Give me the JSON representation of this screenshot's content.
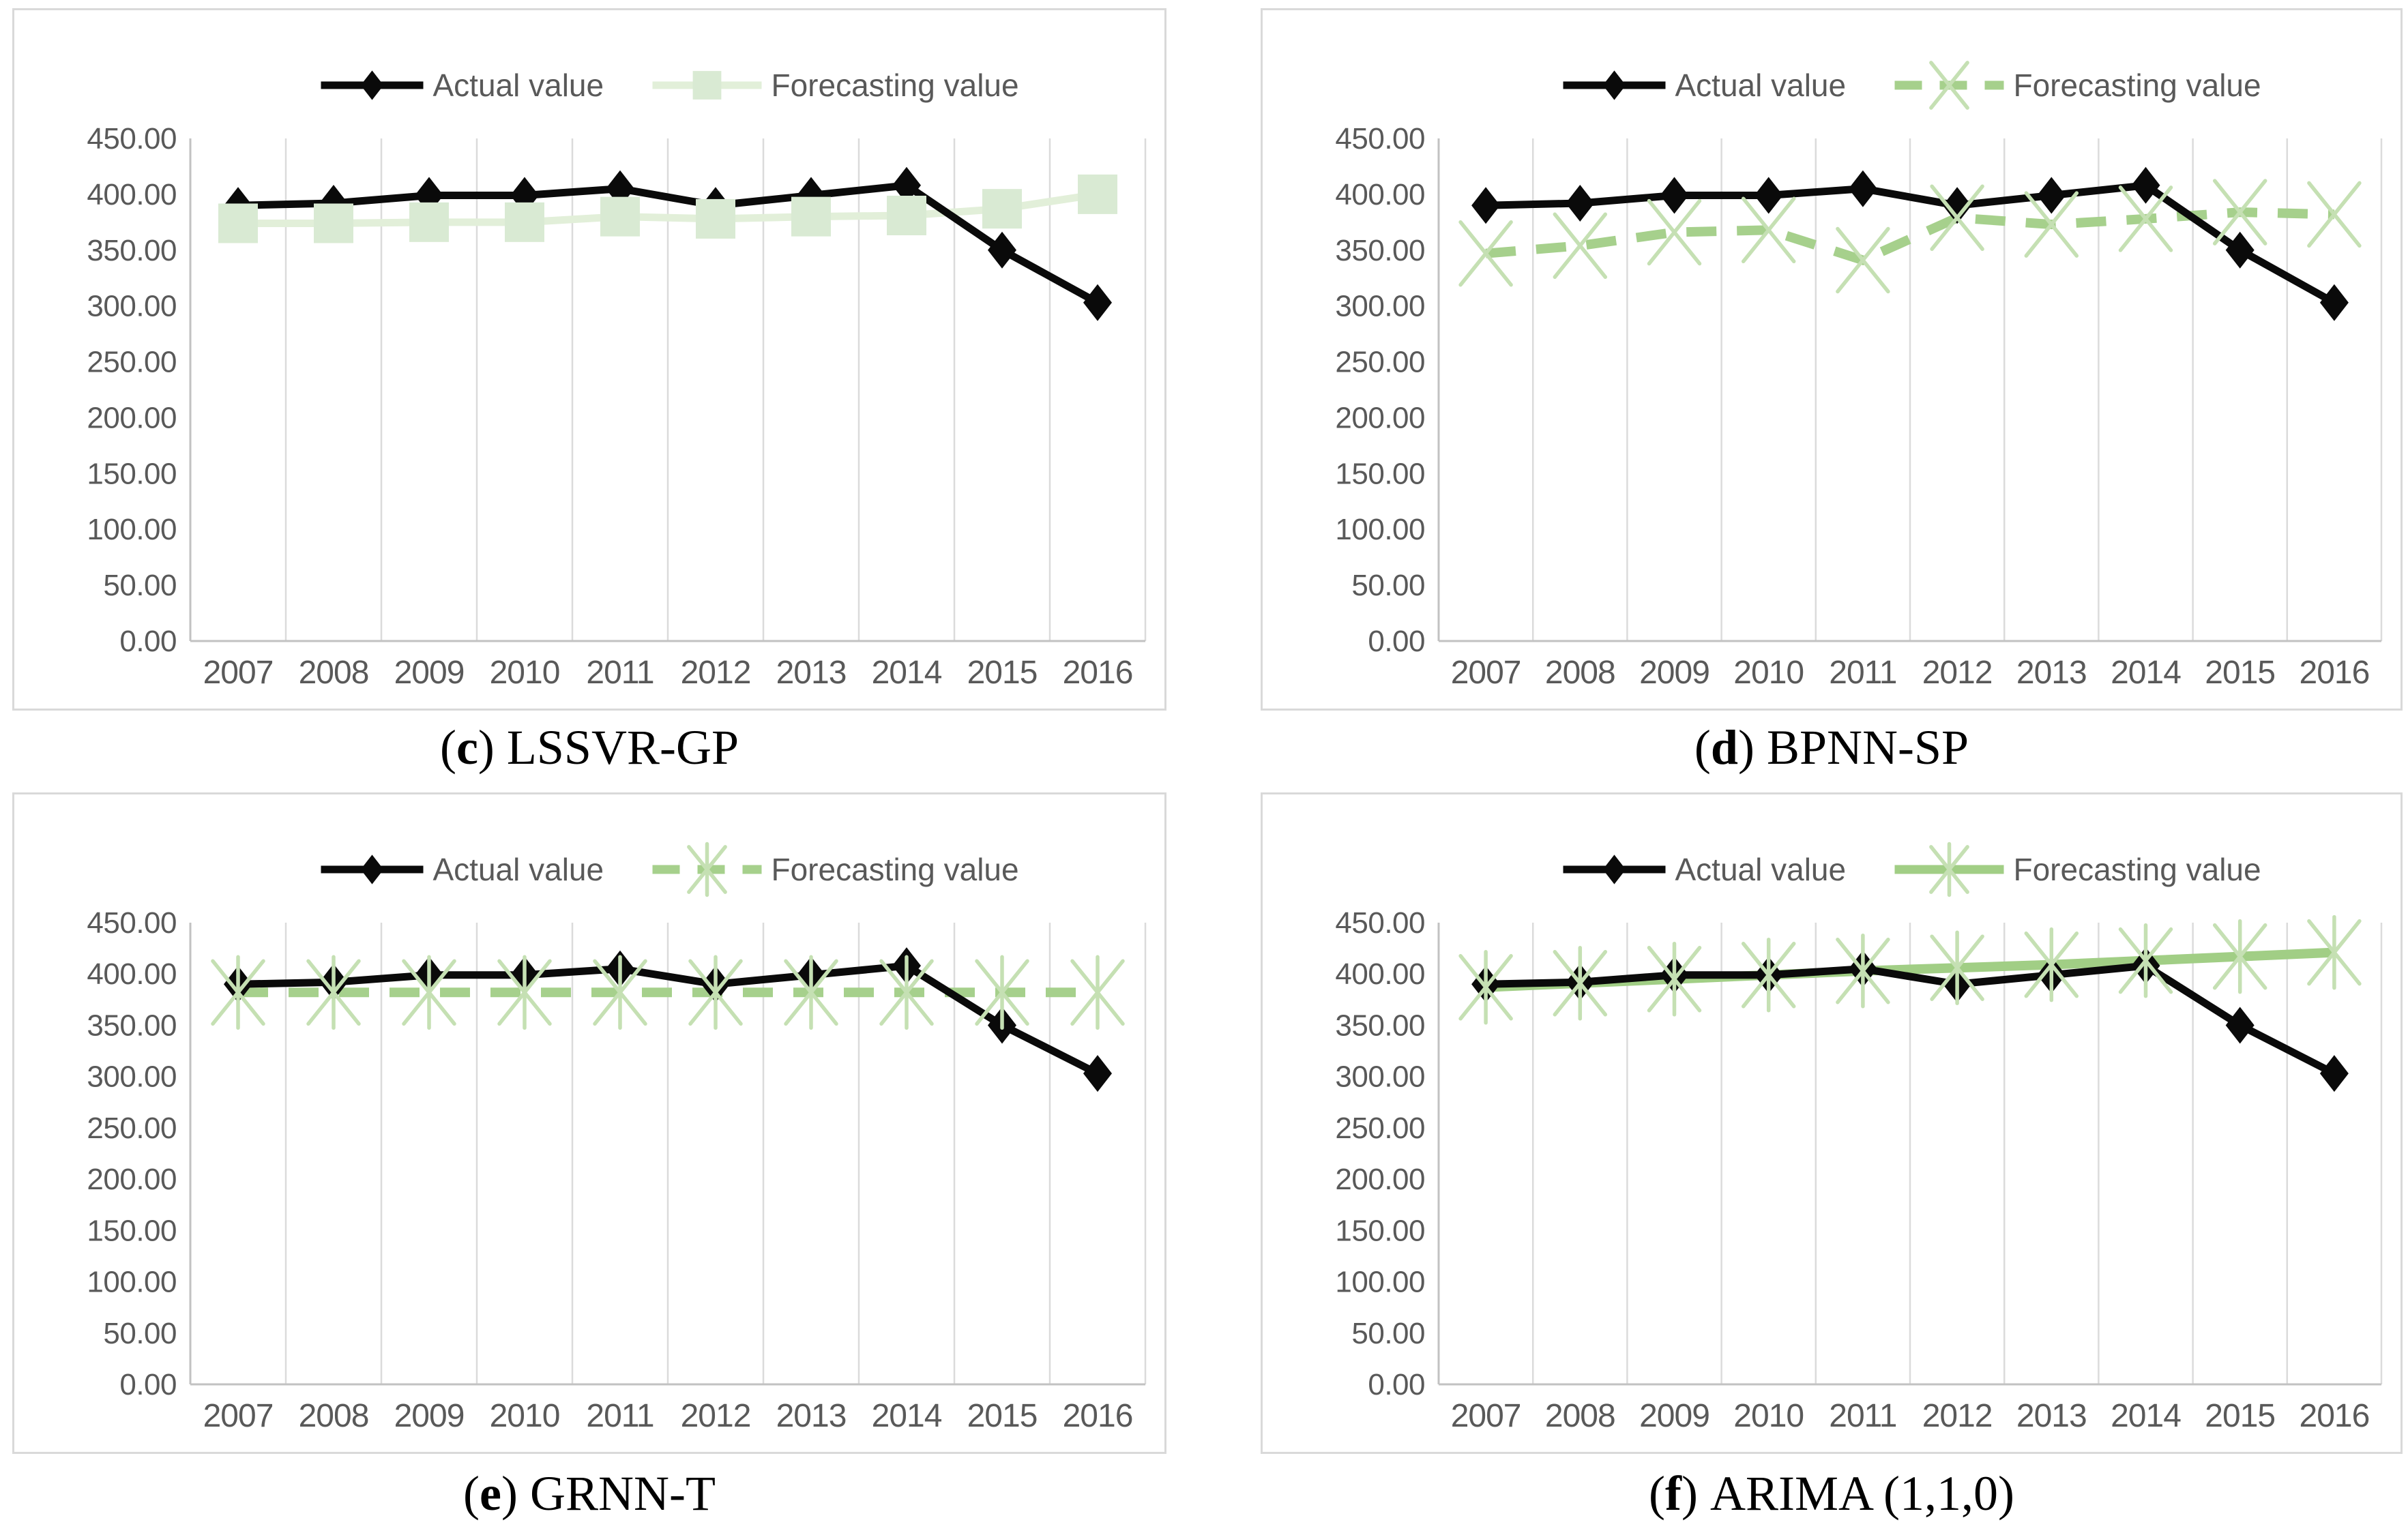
{
  "palette": {
    "panel_border": "#d9d9d9",
    "gridline": "#dbdbdb",
    "axis_line": "#c2c2c2",
    "tick_text": "#595959",
    "legend_text": "#595959",
    "actual_black": "#0a0a0a",
    "light_green_line": "#e2efd9",
    "light_green_square": "#d9ead3",
    "medium_green": "#a6d08c",
    "solid_green_line": "#a1ce85",
    "pale_green_marker": "#c5e0b3"
  },
  "chart_data": [
    {
      "panel": "c",
      "type": "line",
      "caption": {
        "open": "(",
        "letter": "c",
        "close": ")",
        "title": "LSSVR-GP"
      },
      "x": [
        "2007",
        "2008",
        "2009",
        "2010",
        "2011",
        "2012",
        "2013",
        "2014",
        "2015",
        "2016"
      ],
      "ylim": [
        0,
        450
      ],
      "ytick_step": 50,
      "ytick_labels": [
        "450.00",
        "400.00",
        "350.00",
        "300.00",
        "250.00",
        "200.00",
        "150.00",
        "100.00",
        "50.00",
        "0.00"
      ],
      "grid": "vertical-only",
      "legend_position": "top-center",
      "series": [
        {
          "name": "Actual value",
          "color": "#0a0a0a",
          "marker": "diamond",
          "marker_color": "#0a0a0a",
          "line_style": "solid",
          "values": [
            390,
            392,
            399,
            399,
            405,
            390,
            399,
            408,
            350,
            303
          ]
        },
        {
          "name": "Forecasting value",
          "color": "#e2efd9",
          "marker": "square",
          "marker_color": "#d9ead3",
          "line_style": "solid",
          "values": [
            374,
            374,
            375,
            375,
            380,
            378,
            380,
            381,
            387,
            400
          ]
        }
      ]
    },
    {
      "panel": "d",
      "type": "line",
      "caption": {
        "open": "(",
        "letter": "d",
        "close": ")",
        "title": "BPNN-SP"
      },
      "x": [
        "2007",
        "2008",
        "2009",
        "2010",
        "2011",
        "2012",
        "2013",
        "2014",
        "2015",
        "2016"
      ],
      "ylim": [
        0,
        450
      ],
      "ytick_step": 50,
      "ytick_labels": [
        "450.00",
        "400.00",
        "350.00",
        "300.00",
        "250.00",
        "200.00",
        "150.00",
        "100.00",
        "50.00",
        "0.00"
      ],
      "grid": "vertical-only",
      "legend_position": "top-center",
      "series": [
        {
          "name": "Actual value",
          "color": "#0a0a0a",
          "marker": "diamond",
          "marker_color": "#0a0a0a",
          "line_style": "solid",
          "values": [
            390,
            392,
            399,
            399,
            405,
            390,
            399,
            408,
            350,
            303
          ]
        },
        {
          "name": "Forecasting value",
          "color": "#a6d08c",
          "marker": "x",
          "marker_color": "#c5e0b3",
          "line_style": "dashed",
          "values": [
            347,
            354,
            366,
            368,
            341,
            379,
            373,
            378,
            384,
            382
          ]
        }
      ]
    },
    {
      "panel": "e",
      "type": "line",
      "caption": {
        "open": "(",
        "letter": "e",
        "close": ")",
        "title": "GRNN-T"
      },
      "x": [
        "2007",
        "2008",
        "2009",
        "2010",
        "2011",
        "2012",
        "2013",
        "2014",
        "2015",
        "2016"
      ],
      "ylim": [
        0,
        450
      ],
      "ytick_step": 50,
      "ytick_labels": [
        "450.00",
        "400.00",
        "350.00",
        "300.00",
        "250.00",
        "200.00",
        "150.00",
        "100.00",
        "50.00",
        "0.00"
      ],
      "grid": "vertical-only",
      "legend_position": "top-center",
      "series": [
        {
          "name": "Actual value",
          "color": "#0a0a0a",
          "marker": "diamond",
          "marker_color": "#0a0a0a",
          "line_style": "solid",
          "values": [
            390,
            392,
            399,
            399,
            405,
            390,
            399,
            408,
            350,
            303
          ]
        },
        {
          "name": "Forecasting value",
          "color": "#a6d08c",
          "marker": "asterisk",
          "marker_color": "#c5e0b3",
          "line_style": "dashed",
          "values": [
            382,
            382,
            382,
            382,
            382,
            382,
            382,
            382,
            382,
            382
          ]
        }
      ]
    },
    {
      "panel": "f",
      "type": "line",
      "caption": {
        "open": "(",
        "letter": "f",
        "close": ")",
        "title": "ARIMA (1,1,0)"
      },
      "x": [
        "2007",
        "2008",
        "2009",
        "2010",
        "2011",
        "2012",
        "2013",
        "2014",
        "2015",
        "2016"
      ],
      "ylim": [
        0,
        450
      ],
      "ytick_step": 50,
      "ytick_labels": [
        "450.00",
        "400.00",
        "350.00",
        "300.00",
        "250.00",
        "200.00",
        "150.00",
        "100.00",
        "50.00",
        "0.00"
      ],
      "grid": "vertical-only",
      "legend_position": "top-center",
      "series": [
        {
          "name": "Actual value",
          "color": "#0a0a0a",
          "marker": "diamond",
          "marker_color": "#0a0a0a",
          "line_style": "solid",
          "values": [
            390,
            392,
            399,
            399,
            405,
            390,
            399,
            408,
            350,
            303
          ]
        },
        {
          "name": "Forecasting value",
          "color": "#a1ce85",
          "marker": "asterisk",
          "marker_color": "#c5e0b3",
          "line_style": "solid",
          "values": [
            387,
            391,
            395,
            399,
            403,
            406,
            409,
            413,
            417,
            421
          ]
        }
      ]
    }
  ]
}
